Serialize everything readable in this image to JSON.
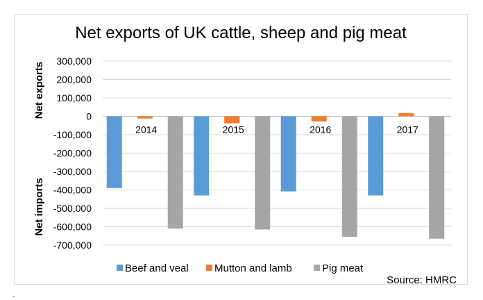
{
  "chart_data": {
    "type": "bar",
    "title": "Net exports of UK cattle, sheep and pig meat",
    "categories": [
      "2014",
      "2015",
      "2016",
      "2017"
    ],
    "series": [
      {
        "name": "Beef and veal",
        "color": "#5b9bd5",
        "values": [
          -390000,
          -430000,
          -408000,
          -430000
        ]
      },
      {
        "name": "Mutton and lamb",
        "color": "#ed7d31",
        "values": [
          -12000,
          -38000,
          -28000,
          18000
        ]
      },
      {
        "name": "Pig meat",
        "color": "#a5a5a5",
        "values": [
          -610000,
          -615000,
          -655000,
          -665000
        ]
      }
    ],
    "ylim": [
      -700000,
      300000
    ],
    "yticks": [
      "300,000",
      "200,000",
      "100,000",
      "0",
      "-100,000",
      "-200,000",
      "-300,000",
      "-400,000",
      "-500,000",
      "-600,000",
      "-700,000"
    ],
    "ylabel_top": "Net exports",
    "ylabel_bottom": "Net imports",
    "grid": true,
    "legend": "bottom",
    "source": "Source: HMRC"
  }
}
